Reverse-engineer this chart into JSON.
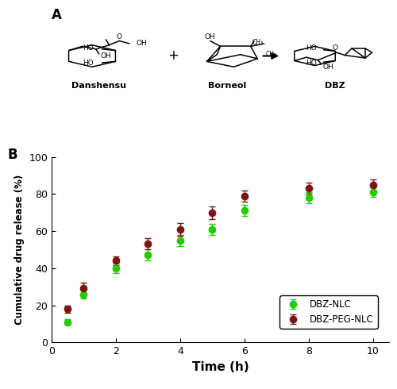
{
  "panel_b": {
    "time_points": [
      0.5,
      1,
      2,
      3,
      4,
      5,
      6,
      8,
      10
    ],
    "nlc_mean": [
      11,
      26,
      40,
      47,
      55,
      61,
      71,
      78,
      81
    ],
    "nlc_err": [
      1.5,
      2.5,
      2.5,
      3,
      3,
      3,
      3,
      3,
      2.5
    ],
    "peg_mean": [
      18,
      29,
      44,
      53,
      61,
      70,
      79,
      83,
      85
    ],
    "peg_err": [
      2,
      3,
      2.5,
      3,
      3.5,
      3.5,
      3,
      3,
      3
    ],
    "xlabel": "Time (h)",
    "ylabel": "Cumulative drug release (%)",
    "xlim": [
      0,
      10.5
    ],
    "ylim": [
      0,
      100
    ],
    "xticks": [
      0,
      2,
      4,
      6,
      8,
      10
    ],
    "yticks": [
      0,
      20,
      40,
      60,
      80,
      100
    ],
    "nlc_color": "#22cc00",
    "peg_color": "#7b1515",
    "nlc_label": "DBZ-NLC",
    "peg_label": "DBZ-PEG-NLC",
    "marker": "o",
    "markersize": 6,
    "linewidth": 1.5
  },
  "panel_a_label": "A",
  "panel_b_label": "B",
  "background_color": "#ffffff"
}
